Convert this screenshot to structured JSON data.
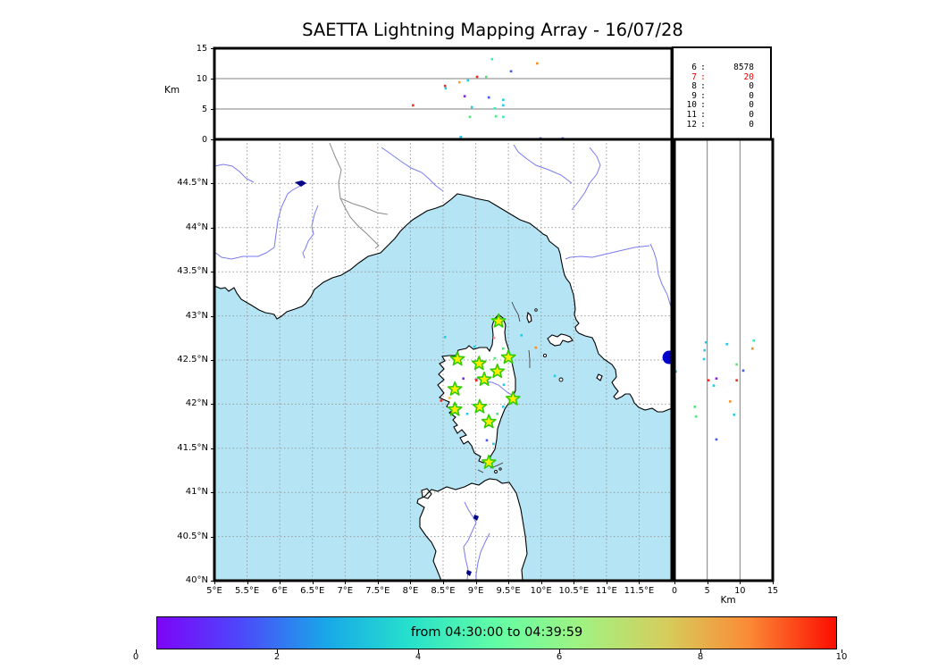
{
  "title": "SAETTA Lightning Mapping Array - 16/07/28",
  "axes": {
    "top_panel": {
      "ylabel": "Km",
      "ylim": [
        0,
        15
      ],
      "yticks": [
        0,
        5,
        10,
        15
      ],
      "gridlines_km": [
        5,
        10
      ],
      "xlim_lon": [
        5,
        12
      ]
    },
    "map": {
      "lonlim": [
        5,
        12
      ],
      "latlim": [
        40,
        45
      ],
      "lon_ticks": [
        5,
        5.5,
        6,
        6.5,
        7,
        7.5,
        8,
        8.5,
        9,
        9.5,
        10,
        10.5,
        11,
        11.5
      ],
      "lat_ticks": [
        40,
        40.5,
        41,
        41.5,
        42,
        42.5,
        43,
        43.5,
        44,
        44.5
      ]
    },
    "right_panel": {
      "xlabel": "Km",
      "xlim": [
        0,
        15
      ],
      "xticks": [
        0,
        5,
        10,
        15
      ],
      "gridlines_km": [
        5,
        10
      ]
    }
  },
  "stats": {
    "rows": [
      {
        "level": "6",
        "count": "8578",
        "highlight": false
      },
      {
        "level": "7",
        "count": "20",
        "highlight": true
      },
      {
        "level": "8",
        "count": "0",
        "highlight": false
      },
      {
        "level": "9",
        "count": "0",
        "highlight": false
      },
      {
        "level": "10",
        "count": "0",
        "highlight": false
      },
      {
        "level": "11",
        "count": "0",
        "highlight": false
      },
      {
        "level": "12",
        "count": "0",
        "highlight": false
      }
    ],
    "highlight_color": "#e60000"
  },
  "colorbar": {
    "label": "from 04:30:00 to 04:39:59",
    "ticks": [
      "0",
      "2",
      "4",
      "6",
      "8",
      "10"
    ],
    "gradient": [
      "#7d05f7 0%",
      "#4e46fb 12%",
      "#18a8e8 25%",
      "#26e0cc 37%",
      "#63fda5 50%",
      "#9ef383 62%",
      "#d6cd5c 75%",
      "#fb8b36 87%",
      "#fc0d00 100%"
    ]
  },
  "colors": {
    "sea": "#b5e5f5",
    "land": "#ffffff",
    "coast": "#000000",
    "river": "#7a7af0",
    "country_border": "#8a8a8a",
    "graticule": "#999999",
    "panel_grid": "#808080",
    "star_fill": "#ffee00",
    "star_edge": "#2ecc00",
    "lake": "#00008b",
    "large_event": "#0000cc"
  },
  "chart_data": {
    "type": "scatter",
    "title": "SAETTA Lightning Mapping Array - 16/07/28",
    "time_window": "from 04:30:00 to 04:39:59",
    "station_source_counts": {
      "6": 8578,
      "7": 20,
      "8": 0,
      "9": 0,
      "10": 0,
      "11": 0,
      "12": 0
    },
    "stations_lonlat": [
      [
        9.35,
        42.94
      ],
      [
        8.72,
        42.51
      ],
      [
        9.05,
        42.46
      ],
      [
        9.5,
        42.53
      ],
      [
        9.33,
        42.37
      ],
      [
        9.13,
        42.28
      ],
      [
        8.68,
        42.17
      ],
      [
        9.57,
        42.06
      ],
      [
        8.68,
        41.94
      ],
      [
        9.06,
        41.97
      ],
      [
        9.2,
        41.8
      ],
      [
        9.2,
        41.34
      ]
    ],
    "alt_vs_lon_points": [
      [
        9.25,
        13.2,
        "#3ce8b4"
      ],
      [
        9.94,
        12.5,
        "#ff8c28"
      ],
      [
        9.54,
        11.2,
        "#4257f5"
      ],
      [
        9.02,
        10.3,
        "#f5291c"
      ],
      [
        9.16,
        10.3,
        "#4ce87a"
      ],
      [
        8.88,
        9.7,
        "#22cbe8"
      ],
      [
        8.75,
        9.4,
        "#ffa028"
      ],
      [
        8.53,
        8.8,
        "#f5291c"
      ],
      [
        8.54,
        8.4,
        "#22cbe8"
      ],
      [
        8.83,
        7.1,
        "#861ff0"
      ],
      [
        9.2,
        6.9,
        "#4257f5"
      ],
      [
        9.42,
        6.5,
        "#22cbe8"
      ],
      [
        8.04,
        5.6,
        "#f5291c"
      ],
      [
        8.94,
        5.3,
        "#22cbe8"
      ],
      [
        9.29,
        5.1,
        "#3ce8b4"
      ],
      [
        9.42,
        5.6,
        "#22cbe8"
      ],
      [
        9.31,
        3.8,
        "#4ce87a"
      ],
      [
        8.91,
        3.7,
        "#4ce87a"
      ],
      [
        9.42,
        3.7,
        "#3ce8b4"
      ],
      [
        8.77,
        0.4,
        "#22cbe8"
      ],
      [
        9.99,
        0.15,
        "#4257f5"
      ],
      [
        10.33,
        0.15,
        "#4257f5"
      ]
    ],
    "map_points": [
      [
        9.28,
        42.75,
        "#ff8c8c"
      ],
      [
        9.7,
        42.78,
        "#22cbe8"
      ],
      [
        8.98,
        42.65,
        "#22cbe8"
      ],
      [
        9.42,
        42.63,
        "#4ce87a"
      ],
      [
        9.29,
        42.52,
        "#4ce87a"
      ],
      [
        9.92,
        42.64,
        "#ff8c28"
      ],
      [
        8.81,
        42.29,
        "#861ff0"
      ],
      [
        9.01,
        42.27,
        "#f5291c"
      ],
      [
        9.43,
        42.22,
        "#22cbe8"
      ],
      [
        10.21,
        42.32,
        "#22cbe8"
      ],
      [
        8.47,
        42.04,
        "#f5291c"
      ],
      [
        8.6,
        42.07,
        "#e6c84f"
      ],
      [
        8.87,
        41.89,
        "#22cbe8"
      ],
      [
        9.42,
        41.97,
        "#22cbe8"
      ],
      [
        9.33,
        41.89,
        "#4ce87a"
      ],
      [
        9.17,
        41.59,
        "#4257f5"
      ],
      [
        9.27,
        41.55,
        "#22cbe8"
      ],
      [
        8.53,
        42.76,
        "#22cbe8"
      ]
    ],
    "alt_vs_lat_points": [
      [
        4.8,
        42.7,
        "#22cbe8"
      ],
      [
        8.0,
        42.68,
        "#22cbe8"
      ],
      [
        12.1,
        42.72,
        "#3ce8b4"
      ],
      [
        11.9,
        42.63,
        "#ff8c28"
      ],
      [
        4.6,
        42.61,
        "#22cbe8"
      ],
      [
        4.5,
        42.51,
        "#22cbe8"
      ],
      [
        9.5,
        42.45,
        "#4ce87a"
      ],
      [
        10.5,
        42.38,
        "#4257f5"
      ],
      [
        0.2,
        42.37,
        "#22cbe8"
      ],
      [
        5.2,
        42.27,
        "#f5291c"
      ],
      [
        6.4,
        42.29,
        "#861ff0"
      ],
      [
        9.5,
        42.27,
        "#f5291c"
      ],
      [
        6.0,
        42.21,
        "#22cbe8"
      ],
      [
        8.5,
        42.03,
        "#ff8c28"
      ],
      [
        3.1,
        41.97,
        "#4ce87a"
      ],
      [
        3.3,
        41.86,
        "#4ce87a"
      ],
      [
        9.1,
        41.88,
        "#22cbe8"
      ],
      [
        6.4,
        41.6,
        "#4257f5"
      ]
    ],
    "large_event": {
      "lon": 11.96,
      "lat": 42.53
    }
  },
  "geo_paths": {
    "land": [
      "M0,164 L7,167 12,166 16,170 22,166 25,172 30,179 42,186 50,191 57,194 63,195 67,196 70,201 75,198 81,193 90,190 98,187 102,184 108,176 112,168 122,160 132,155 142,152 152,146 162,138 172,131 179,129 186,127 194,119 202,111 208,103 215,96 222,90 230,85 238,80 248,77 256,74 264,68 272,61 277,62 286,64 292,66 302,68 307,69 317,75 327,81 337,87 342,90 353,94 357,97 362,101 368,106 372,108 375,114 380,118 385,122 387,128 388,134 389,139 390,144 392,152 394,156 398,161 400,168 402,174 403,181 404,190 403,196 405,202 408,206 404,210 405,214 408,217 415,220 423,222 426,228 430,240 436,246 445,252 449,258 450,266 445,272 448,277 452,282 447,288 450,291 456,288 460,285 465,285 468,290 470,295 475,300 482,303 490,301 496,305 502,305 512,301 L512,0 L0,0 Z",
      "M318,196 L323,200 326,208 325,216 326,225 329,234 331,241 334,254 337,268 337,281 333,291 329,296 325,302 321,312 317,324 316,336 314,347 309,355 308,360 301,362 296,360 298,355 291,351 288,343 284,338 279,341 275,334 282,331 277,325 272,329 268,322 272,320 267,314 270,311 263,306 267,303 260,299 263,294 256,291 252,289 257,284 250,275 257,269 251,263 257,257 252,251 258,248 255,243 263,242 270,242 273,236 282,234 285,231 290,235 297,233 305,233 308,237 311,230 312,219 311,209 313,202 Z",
      "M227,407 L235,412 230,424 230,434 237,444 243,451 248,461 245,472 250,484 254,494 L345,494 L344,482 350,464 348,444 343,414 338,396 330,384 322,385 316,381 308,380 303,382 296,387 288,385 280,389 270,392 260,389 250,394 243,392 235,400 228,403 Z",
      "M232,393 L238,391 243,397 239,402 233,400 Z",
      "M373,223 L378,219 384,221 388,218 393,219 398,221 401,225 396,227 390,225 387,230 381,231 376,228 Z",
      "M351,194 L354,197 355,203 352,205 350,200 Z",
      "M430,263 L434,265 432,270 428,267 Z"
    ],
    "islets": [
      [
        370,
        242,
        1.6
      ],
      [
        388,
        269,
        2
      ],
      [
        360,
        191,
        1.3
      ],
      [
        315,
        372,
        1.5
      ],
      [
        320,
        369,
        1.2
      ]
    ],
    "rivers": [
      "M96,52 L87,57 82,61 75,76 71,91 69,106 67,121 58,127 49,131 32,131 19,134 8,132 0,126",
      "M0,30 L10,28 20,30 28,36 36,44 44,48",
      "M116,74 L112,84 109,97 111,106 105,114 102,122 99,127 101,133",
      "M187,9 L197,16 208,24 220,32 232,37 240,44 248,52 256,58",
      "M335,6 L340,14 350,22 360,29 374,34 388,40 400,49",
      "M420,9 L428,19 432,29 428,39 420,49 415,59 408,69 400,79",
      "M487,119 L470,121 457,124 440,128 423,132 410,131 398,132 393,134",
      "M488,117 L492,126 495,136 497,151 501,162 507,174 510,184 512,190",
      "M291,269 L297,267 303,271 311,272 318,275 324,280 329,284 333,286",
      "M280,406 L284,414 289,422 293,429 288,440 284,449 279,456 281,469 284,482 283,494",
      "M308,441 L303,451 298,462 295,474 293,487 293,494"
    ],
    "country_borders": [
      "M129,4 L135,19 142,34 139,49 141,66 146,76 152,87 160,96 172,107 179,114 184,119 180,122",
      "M141,66 L155,72 168,76 182,82 194,84"
    ],
    "lakes": [
      "M90,48 L98,46 103,49 97,53 Z",
      "M291,420 L296,422 294,427 290,424 Z",
      "M283,482 L288,484 286,489 282,486 Z"
    ],
    "sea_lines": [
      "M333,182 L336,189 340,196 342,204",
      "M352,236 L353,246 353,256",
      "M309,368 L317,365 323,362",
      "M295,370 L301,373"
    ]
  }
}
